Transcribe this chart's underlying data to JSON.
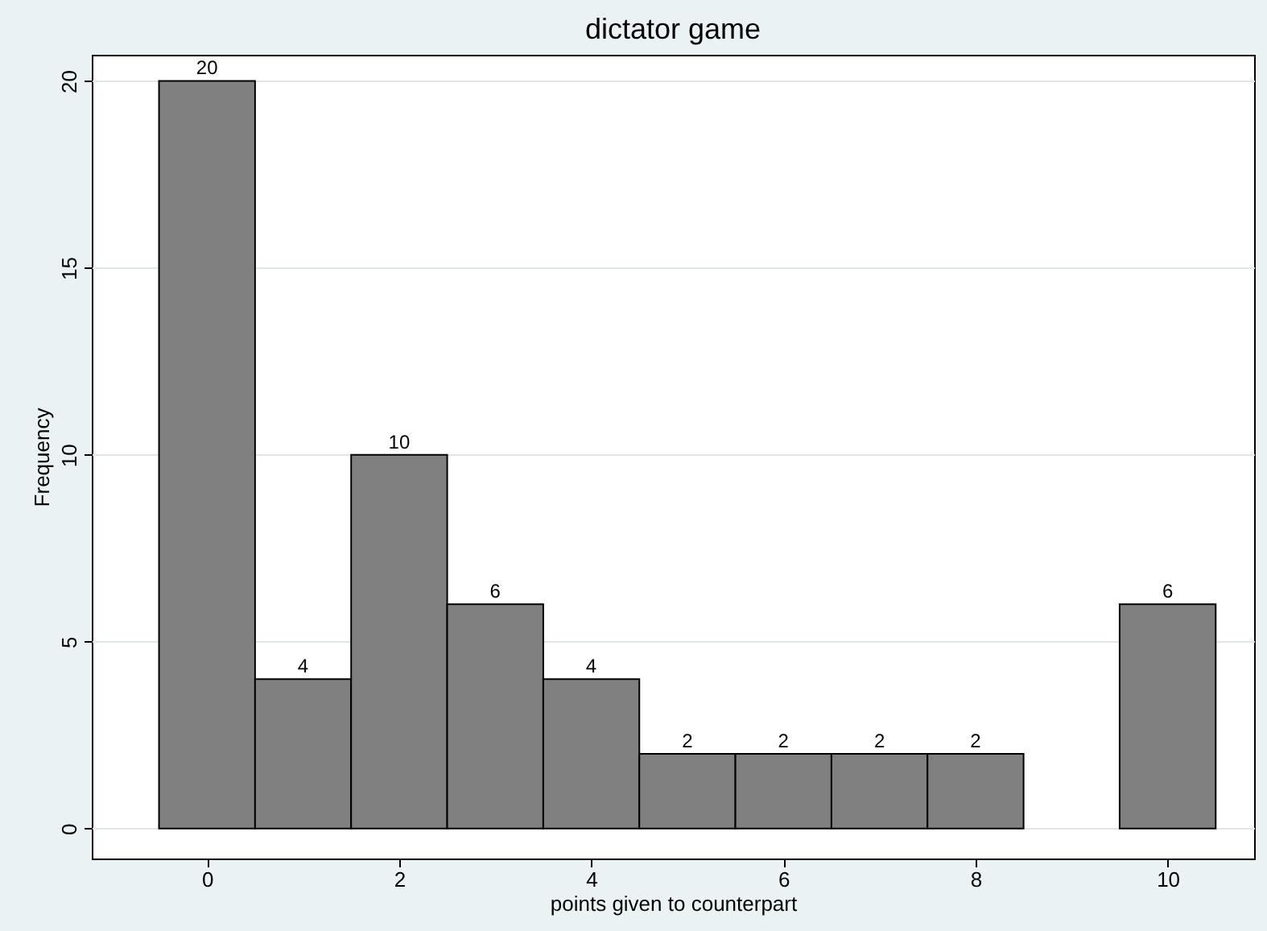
{
  "chart_data": {
    "type": "histogram",
    "title": "dictator game",
    "xlabel": "points given to counterpart",
    "ylabel": "Frequency",
    "bins": [
      -0.5,
      0.5,
      1.5,
      2.5,
      3.5,
      4.5,
      5.5,
      6.5,
      7.5,
      8.5,
      9.5,
      10.5
    ],
    "values": [
      20,
      4,
      10,
      6,
      4,
      2,
      2,
      2,
      2,
      0,
      6
    ],
    "value_labels": [
      "20",
      "4",
      "10",
      "6",
      "4",
      "2",
      "2",
      "2",
      "2",
      null,
      "6"
    ],
    "color": "#808080",
    "xlim": [
      -1.2,
      10.9
    ],
    "xticks": [
      0,
      2,
      4,
      6,
      8,
      10
    ],
    "ylim": [
      -0.8,
      20.7
    ],
    "yticks": [
      0,
      5,
      10,
      15,
      20
    ],
    "grid": "y"
  }
}
